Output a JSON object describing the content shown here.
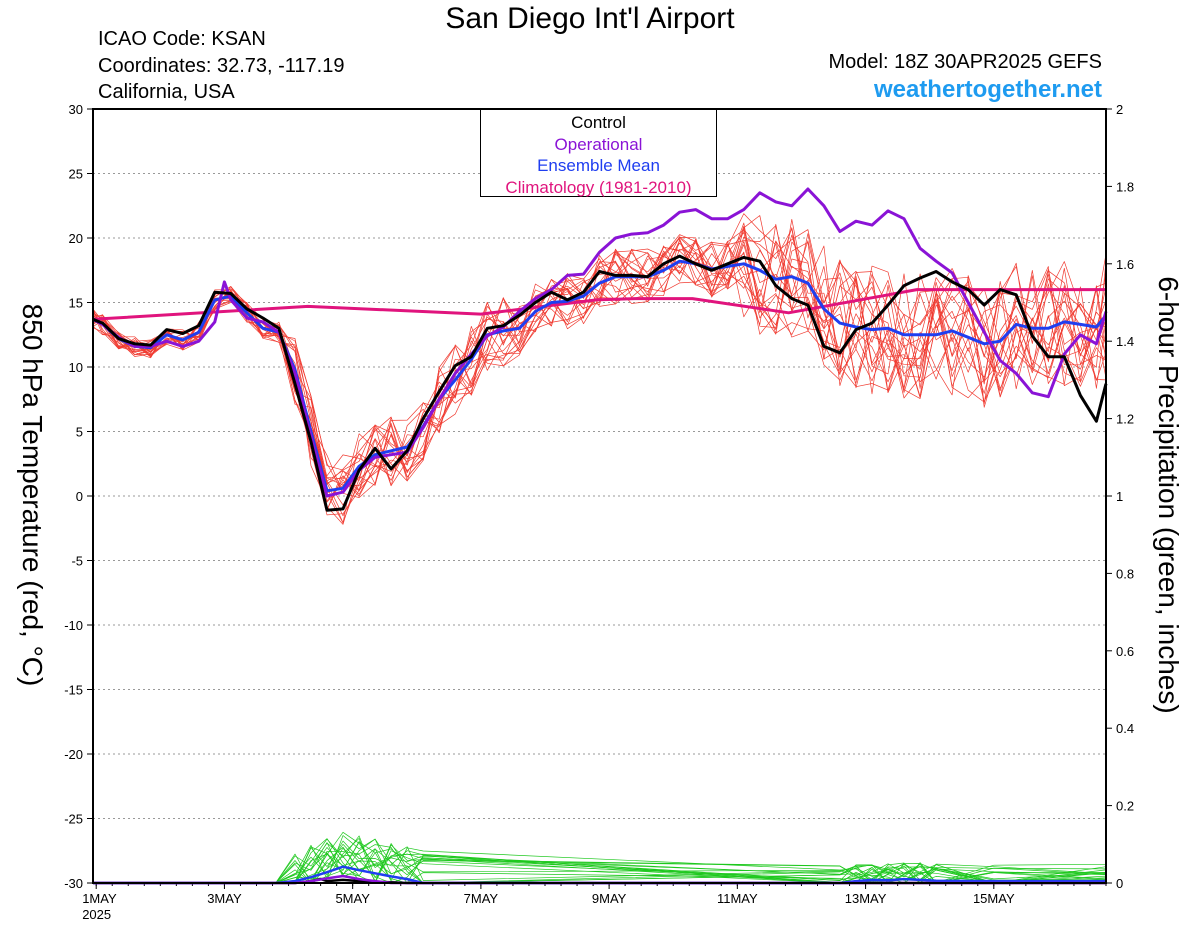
{
  "header": {
    "title": "San Diego Int'l Airport",
    "icao": "ICAO Code: KSAN",
    "coordinates": "Coordinates: 32.73, -117.19",
    "region": "California, USA",
    "model": "Model: 18Z 30APR2025 GEFS",
    "site": "weathertogether.net"
  },
  "legend": {
    "items": [
      {
        "label": "Control",
        "color": "#000000"
      },
      {
        "label": "Operational",
        "color": "#8a13d6"
      },
      {
        "label": "Ensemble Mean",
        "color": "#1f3ef0"
      },
      {
        "label": "Climatology (1981-2010)",
        "color": "#e0147d"
      }
    ]
  },
  "colors": {
    "members_temp": "#f03c32",
    "members_precip": "#1ec81e",
    "control": "#000000",
    "operational": "#8a13d6",
    "mean": "#1f3ef0",
    "climatology": "#e0147d"
  },
  "chart_data": {
    "type": "line",
    "title": "San Diego Int'l Airport",
    "ylabel": "850 hPa Temperature (red, °C)",
    "y2label": "6-hour Precipitation (green, inches)",
    "ylim": [
      -30,
      30
    ],
    "y2lim": [
      0,
      2
    ],
    "yticks": [
      "30",
      "25",
      "20",
      "15",
      "10",
      "5",
      "0",
      "-5",
      "-10",
      "-15",
      "-20",
      "-25",
      "-30"
    ],
    "y2ticks": [
      "2",
      "1.8",
      "1.6",
      "1.4",
      "1.2",
      "1",
      "0.8",
      "0.6",
      "0.4",
      "0.2",
      "0"
    ],
    "x_start": "1MAY 2025",
    "xticks": [
      {
        "day": 1,
        "label": "1MAY",
        "sub": "2025"
      },
      {
        "day": 3,
        "label": "3MAY"
      },
      {
        "day": 5,
        "label": "5MAY"
      },
      {
        "day": 7,
        "label": "7MAY"
      },
      {
        "day": 9,
        "label": "9MAY"
      },
      {
        "day": 11,
        "label": "11MAY"
      },
      {
        "day": 13,
        "label": "13MAY"
      },
      {
        "day": 15,
        "label": "15MAY"
      }
    ],
    "xlim": [
      0.95,
      16.75
    ],
    "grid": true,
    "series": [
      {
        "name": "Control",
        "role": "control",
        "x": [
          0.95,
          1.1,
          1.35,
          1.6,
          1.85,
          2.1,
          2.35,
          2.6,
          2.85,
          3.1,
          3.35,
          3.6,
          3.85,
          4.1,
          4.35,
          4.6,
          4.85,
          5.1,
          5.35,
          5.6,
          5.85,
          6.1,
          6.35,
          6.6,
          6.85,
          7.1,
          7.35,
          7.6,
          7.85,
          8.1,
          8.35,
          8.6,
          8.85,
          9.1,
          9.35,
          9.6,
          9.85,
          10.1,
          10.35,
          10.6,
          10.85,
          11.1,
          11.35,
          11.6,
          11.85,
          12.1,
          12.35,
          12.6,
          12.85,
          13.1,
          13.35,
          13.6,
          13.85,
          14.1,
          14.35,
          14.6,
          14.85,
          15.1,
          15.35,
          15.6,
          15.85,
          16.1,
          16.35,
          16.6,
          16.75
        ],
        "y": [
          13.7,
          13.4,
          12.2,
          11.8,
          11.7,
          12.9,
          12.6,
          13.2,
          15.8,
          15.7,
          14.5,
          13.8,
          13.0,
          8.7,
          4.2,
          -1.1,
          -1.0,
          2.0,
          3.7,
          2.1,
          3.5,
          6.0,
          8.1,
          10.1,
          10.8,
          13.0,
          13.2,
          14.0,
          15.0,
          15.8,
          15.2,
          15.8,
          17.4,
          17.1,
          17.1,
          17.0,
          18.0,
          18.6,
          18.0,
          17.5,
          18.0,
          18.5,
          18.2,
          16.3,
          15.3,
          14.8,
          11.6,
          11.1,
          12.9,
          13.4,
          14.8,
          16.3,
          16.9,
          17.4,
          16.6,
          16.0,
          14.8,
          16.0,
          15.6,
          12.4,
          10.8,
          10.8,
          7.8,
          5.8,
          8.7
        ]
      },
      {
        "name": "Operational",
        "role": "operational",
        "x": [
          0.95,
          1.1,
          1.35,
          1.6,
          1.85,
          2.1,
          2.35,
          2.6,
          2.85,
          3.0,
          3.1,
          3.35,
          3.6,
          3.85,
          4.1,
          4.35,
          4.6,
          4.85,
          5.1,
          5.35,
          5.6,
          5.85,
          6.1,
          6.35,
          6.6,
          6.85,
          7.1,
          7.35,
          7.6,
          7.85,
          8.1,
          8.35,
          8.6,
          8.85,
          9.1,
          9.35,
          9.6,
          9.85,
          10.1,
          10.35,
          10.6,
          10.85,
          11.1,
          11.35,
          11.6,
          11.85,
          12.1,
          12.35,
          12.6,
          12.85,
          13.1,
          13.35,
          13.6,
          13.85,
          14.1,
          14.35,
          14.6,
          14.85,
          15.1,
          15.35,
          15.6,
          15.85,
          16.1,
          16.35,
          16.6,
          16.75
        ],
        "y": [
          13.7,
          13.3,
          12.3,
          11.6,
          11.6,
          12.0,
          11.6,
          12.0,
          13.5,
          16.6,
          15.2,
          13.8,
          13.5,
          12.7,
          9.5,
          4.6,
          0.0,
          0.3,
          2.0,
          3.0,
          3.2,
          3.4,
          5.3,
          7.5,
          9.5,
          11.0,
          12.4,
          13.1,
          14.3,
          15.3,
          16.0,
          17.1,
          17.2,
          18.9,
          20.0,
          20.3,
          20.4,
          21.0,
          22.0,
          22.2,
          21.5,
          21.5,
          22.2,
          23.5,
          22.8,
          22.5,
          23.8,
          22.5,
          20.5,
          21.3,
          21.0,
          22.1,
          21.5,
          19.2,
          18.2,
          17.3,
          15.0,
          12.7,
          10.5,
          9.5,
          8.0,
          7.7,
          11.0,
          12.5,
          11.8,
          14.3
        ]
      },
      {
        "name": "Ensemble Mean",
        "role": "mean",
        "x": [
          0.95,
          1.1,
          1.35,
          1.6,
          1.85,
          2.1,
          2.35,
          2.6,
          2.85,
          3.1,
          3.35,
          3.6,
          3.85,
          4.1,
          4.35,
          4.6,
          4.85,
          5.1,
          5.35,
          5.6,
          5.85,
          6.1,
          6.35,
          6.6,
          6.85,
          7.1,
          7.35,
          7.6,
          7.85,
          8.1,
          8.35,
          8.6,
          8.85,
          9.1,
          9.35,
          9.6,
          9.85,
          10.1,
          10.35,
          10.6,
          10.85,
          11.1,
          11.35,
          11.6,
          11.85,
          12.1,
          12.35,
          12.6,
          12.85,
          13.1,
          13.35,
          13.6,
          13.85,
          14.1,
          14.35,
          14.6,
          14.85,
          15.1,
          15.35,
          15.6,
          15.85,
          16.1,
          16.35,
          16.6,
          16.75
        ],
        "y": [
          13.7,
          13.3,
          12.2,
          11.6,
          11.5,
          12.5,
          12.1,
          12.7,
          15.2,
          15.5,
          14.2,
          13.0,
          12.7,
          9.8,
          5.0,
          0.4,
          0.6,
          2.3,
          3.2,
          3.5,
          3.8,
          5.4,
          7.5,
          9.0,
          10.6,
          12.5,
          12.8,
          13.0,
          14.3,
          15.0,
          15.1,
          15.5,
          16.5,
          17.0,
          17.0,
          17.0,
          17.5,
          18.2,
          18.0,
          17.6,
          17.8,
          18.0,
          17.5,
          16.8,
          17.0,
          16.5,
          14.5,
          13.4,
          13.1,
          12.9,
          13.0,
          12.5,
          12.5,
          12.5,
          12.8,
          12.3,
          11.8,
          12.0,
          13.3,
          13.0,
          13.0,
          13.5,
          13.3,
          13.1,
          14.0
        ]
      },
      {
        "name": "Climatology (1981-2010)",
        "role": "climatology",
        "x": [
          0.95,
          4.3,
          7.0,
          8.8,
          9.4,
          10.3,
          11.8,
          13.8,
          16.75
        ],
        "y": [
          13.7,
          14.7,
          14.1,
          15.2,
          15.3,
          15.3,
          14.2,
          16.0,
          16.0
        ]
      }
    ],
    "precip_series": [
      {
        "name": "Control",
        "role": "control",
        "x": [
          0.95,
          3.8,
          4.1,
          4.35,
          4.5,
          4.6,
          4.85,
          5.1,
          5.35,
          5.6,
          5.85,
          16.75
        ],
        "y": [
          0,
          0,
          0,
          0.005,
          0.01,
          0.005,
          0.008,
          0.005,
          0.003,
          0.002,
          0,
          0
        ]
      },
      {
        "name": "Ensemble Mean",
        "role": "mean",
        "x": [
          0.95,
          3.8,
          4.1,
          4.35,
          4.6,
          4.85,
          5.1,
          5.35,
          5.6,
          5.85,
          6.1,
          12.6,
          12.85,
          13.1,
          13.35,
          13.6,
          13.85,
          14.1,
          15.0,
          16.75
        ],
        "y": [
          0,
          0,
          0.005,
          0.015,
          0.028,
          0.042,
          0.033,
          0.025,
          0.017,
          0.01,
          0,
          0,
          0.005,
          0.008,
          0.007,
          0.01,
          0.008,
          0.006,
          0.005,
          0.005
        ]
      },
      {
        "name": "Operational",
        "role": "operational",
        "x": [
          0.95,
          4.1,
          4.35,
          4.6,
          4.85,
          5.1,
          5.35,
          5.6,
          16.75
        ],
        "y": [
          0,
          0,
          0.005,
          0.012,
          0.018,
          0.01,
          0.005,
          0,
          0
        ]
      }
    ]
  }
}
